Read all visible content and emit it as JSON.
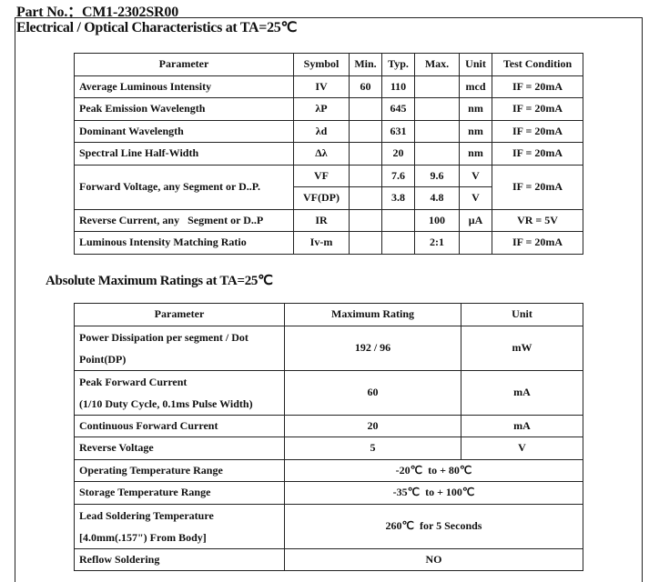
{
  "part_no": "Part No.：CM1-2302SR00",
  "section1": {
    "title": "Electrical / Optical Characteristics at TA=25℃",
    "headers": [
      "Parameter",
      "Symbol",
      "Min.",
      "Typ.",
      "Max.",
      "Unit",
      "Test Condition"
    ],
    "rows": [
      {
        "param": "Average Luminous Intensity",
        "symbol": "IV",
        "min": "60",
        "typ": "110",
        "max": "",
        "unit": "mcd",
        "cond": "IF = 20mA"
      },
      {
        "param": "Peak Emission Wavelength",
        "symbol": "λP",
        "min": "",
        "typ": "645",
        "max": "",
        "unit": "nm",
        "cond": "IF = 20mA"
      },
      {
        "param": "Dominant Wavelength",
        "symbol": "λd",
        "min": "",
        "typ": "631",
        "max": "",
        "unit": "nm",
        "cond": "IF = 20mA"
      },
      {
        "param": "Spectral Line Half-Width",
        "symbol": "Δλ",
        "min": "",
        "typ": "20",
        "max": "",
        "unit": "nm",
        "cond": "IF = 20mA"
      },
      {
        "param": "Forward Voltage, any Segment or D..P.",
        "symbol": "VF",
        "min": "",
        "typ": "7.6",
        "max": "9.6",
        "unit": "V",
        "cond": "IF = 20mA"
      },
      {
        "symbol": "VF(DP)",
        "min": "",
        "typ": "3.8",
        "max": "4.8",
        "unit": "V"
      },
      {
        "param": "Reverse Current, any   Segment or D..P",
        "symbol": "IR",
        "min": "",
        "typ": "",
        "max": "100",
        "unit": "μA",
        "cond": "VR = 5V"
      },
      {
        "param": "Luminous Intensity Matching Ratio",
        "symbol": "Iv-m",
        "min": "",
        "typ": "",
        "max": "2:1",
        "unit": "",
        "cond": "IF = 20mA"
      }
    ]
  },
  "section2": {
    "title": "Absolute Maximum Ratings at TA=25℃",
    "headers": [
      "Parameter",
      "Maximum Rating",
      "Unit"
    ],
    "rows": [
      {
        "param": "Power Dissipation per segment / Dot Point(DP)",
        "rating": "192 / 96",
        "unit": "mW"
      },
      {
        "param1": "Peak Forward Current",
        "param2": "(1/10 Duty Cycle, 0.1ms Pulse Width)",
        "rating": "60",
        "unit": "mA"
      },
      {
        "param": "Continuous Forward Current",
        "rating": "20",
        "unit": "mA"
      },
      {
        "param": "Reverse Voltage",
        "rating": "5",
        "unit": "V"
      },
      {
        "param": "Operating Temperature Range",
        "rating": "-20℃  to + 80℃"
      },
      {
        "param": "Storage Temperature Range",
        "rating": "-35℃  to + 100℃"
      },
      {
        "param1": "Lead Soldering Temperature",
        "param2": "[4.0mm(.157\") From Body]",
        "rating": "260℃  for 5 Seconds"
      },
      {
        "param": "Reflow Soldering",
        "rating": "NO"
      }
    ]
  }
}
